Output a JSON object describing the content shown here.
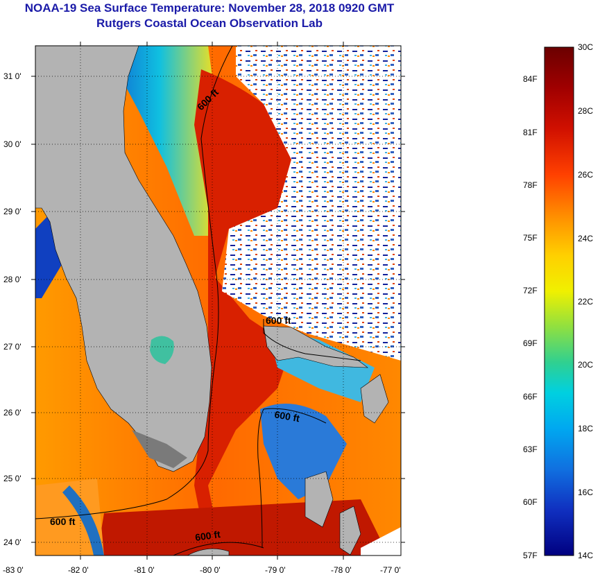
{
  "title": "NOAA-19 Sea Surface Temperature:  November 28, 2018 0920 GMT",
  "subtitle": "Rutgers Coastal Ocean Observation Lab",
  "map": {
    "lat_labels": [
      "31 0'",
      "30 0'",
      "29 0'",
      "28 0'",
      "27 0'",
      "26 0'",
      "25 0'",
      "24 0'"
    ],
    "lon_labels": [
      "-83 0'",
      "-82 0'",
      "-81 0'",
      "-80 0'",
      "-79 0'",
      "-78 0'",
      "-77 0'"
    ],
    "contour_labels": [
      "600 ft",
      "600 ft",
      "600 ft",
      "600 ft",
      "600 ft"
    ],
    "land_color": "#b3b3b3",
    "grid_lines": "dotted"
  },
  "colorbar": {
    "celsius_labels": [
      "30C",
      "28C",
      "26C",
      "24C",
      "22C",
      "20C",
      "18C",
      "16C",
      "14C"
    ],
    "fahrenheit_labels": [
      "84F",
      "81F",
      "78F",
      "75F",
      "72F",
      "69F",
      "66F",
      "63F",
      "60F",
      "57F"
    ],
    "colors": [
      "#6b0000",
      "#b00000",
      "#e02000",
      "#ff5a00",
      "#ff9900",
      "#ffd200",
      "#f0f000",
      "#a8e030",
      "#40d080",
      "#00d0d0",
      "#00a8f0",
      "#1070e0",
      "#1030c0",
      "#000080"
    ]
  }
}
